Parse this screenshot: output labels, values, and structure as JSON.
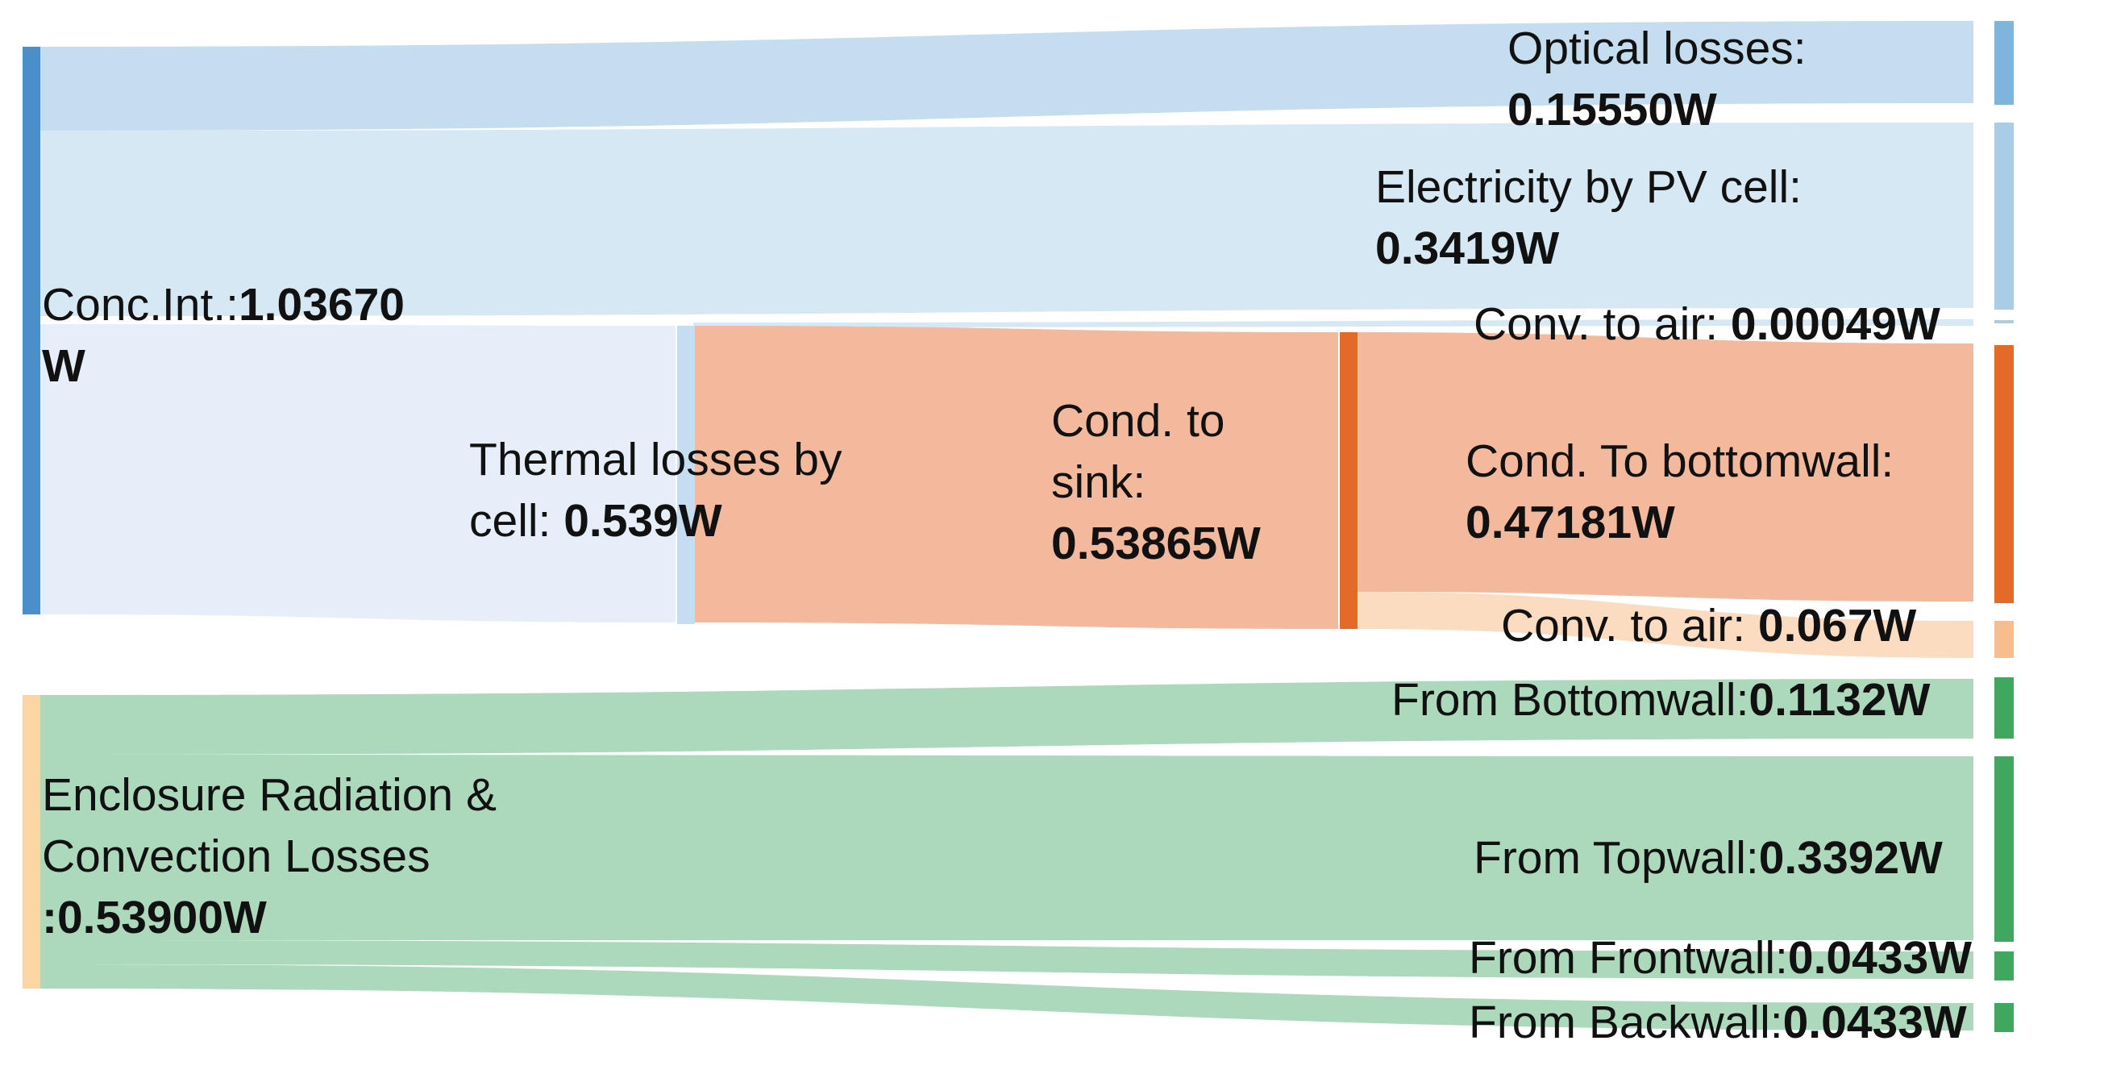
{
  "colors": {
    "blue_dark": "#4a8fc7",
    "blue_mid": "#7fb5dd",
    "blue_light": "#a9cde6",
    "blue_pale": "#c4def0",
    "blue_faint": "#d6e8f4",
    "blue_ghost": "#e6eff9",
    "orange_dark": "#e46a2a",
    "orange_flow": "#f3b99c",
    "orange_light": "#f8bd8b",
    "orange_pale": "#fcdcc0",
    "peach_node": "#fbd5a4",
    "green_dark": "#3fa85f",
    "green_flow": "#acd9bc"
  },
  "nodes": [
    {
      "id": "conc_int",
      "name": "Conc.Int.:",
      "value": "1.03670 W"
    },
    {
      "id": "enclosure",
      "name": "Enclosure Radiation & Convection Losses",
      "value": ":0.53900W"
    },
    {
      "id": "thermal",
      "name": "Thermal losses by cell:",
      "value": "0.539W"
    },
    {
      "id": "cond_sink",
      "name": "Cond. to sink:",
      "value": "0.53865W"
    },
    {
      "id": "optical",
      "name": "Optical losses:",
      "value": "0.15550W"
    },
    {
      "id": "electricity",
      "name": "Electricity by PV cell:",
      "value": "0.3419W"
    },
    {
      "id": "conv_air_1",
      "name": "Conv. to air:",
      "value": "0.00049W"
    },
    {
      "id": "cond_bottom",
      "name": "Cond. To bottomwall:",
      "value": "0.47181W"
    },
    {
      "id": "conv_air_2",
      "name": "Conv. to air:",
      "value": "0.067W"
    },
    {
      "id": "from_bottom",
      "name": "From Bottomwall:",
      "value": "0.1132W"
    },
    {
      "id": "from_top",
      "name": "From Topwall:",
      "value": "0.3392W"
    },
    {
      "id": "from_front",
      "name": "From Frontwall:",
      "value": "0.0433W"
    },
    {
      "id": "from_back",
      "name": "From Backwall:",
      "value": "0.0433W"
    }
  ],
  "flows": [
    {
      "source": "conc_int",
      "target": "optical",
      "value": 0.1555
    },
    {
      "source": "conc_int",
      "target": "electricity",
      "value": 0.3419
    },
    {
      "source": "conc_int",
      "target": "thermal",
      "value": 0.539
    },
    {
      "source": "thermal",
      "target": "cond_sink",
      "value": 0.53865
    },
    {
      "source": "thermal",
      "target": "conv_air_1",
      "value": 0.00049
    },
    {
      "source": "cond_sink",
      "target": "cond_bottom",
      "value": 0.47181
    },
    {
      "source": "cond_sink",
      "target": "conv_air_2",
      "value": 0.067
    },
    {
      "source": "enclosure",
      "target": "from_bottom",
      "value": 0.1132
    },
    {
      "source": "enclosure",
      "target": "from_top",
      "value": 0.3392
    },
    {
      "source": "enclosure",
      "target": "from_front",
      "value": 0.0433
    },
    {
      "source": "enclosure",
      "target": "from_back",
      "value": 0.0433
    }
  ],
  "labels": {
    "conc_int": {
      "name": "Conc.Int.:",
      "value": "1.03670",
      "value2": "W"
    },
    "enclosure": {
      "line1": "Enclosure Radiation &",
      "line2": "Convection Losses",
      "value": ":0.53900W"
    },
    "thermal": {
      "line1": "Thermal losses by",
      "line2": "cell: ",
      "value": "0.539W"
    },
    "cond_sink": {
      "line1": "Cond. to",
      "line2": "sink:",
      "value": "0.53865W"
    },
    "optical": {
      "name": "Optical losses:",
      "value": "0.15550W"
    },
    "electricity": {
      "name": "Electricity by PV cell:",
      "value": "0.3419W"
    },
    "conv_air_1": {
      "name": "Conv. to air: ",
      "value": "0.00049W"
    },
    "cond_bottom": {
      "name": "Cond. To bottomwall:",
      "value": "0.47181W"
    },
    "conv_air_2": {
      "name": "Conv. to air: ",
      "value": "0.067W"
    },
    "from_bottom": {
      "name": "From Bottomwall:",
      "value": "0.1132W"
    },
    "from_top": {
      "name": "From Topwall:",
      "value": "0.3392W"
    },
    "from_front": {
      "name": "From Frontwall:",
      "value": "0.0433W"
    },
    "from_back": {
      "name": "From Backwall:",
      "value": "0.0433W"
    }
  }
}
